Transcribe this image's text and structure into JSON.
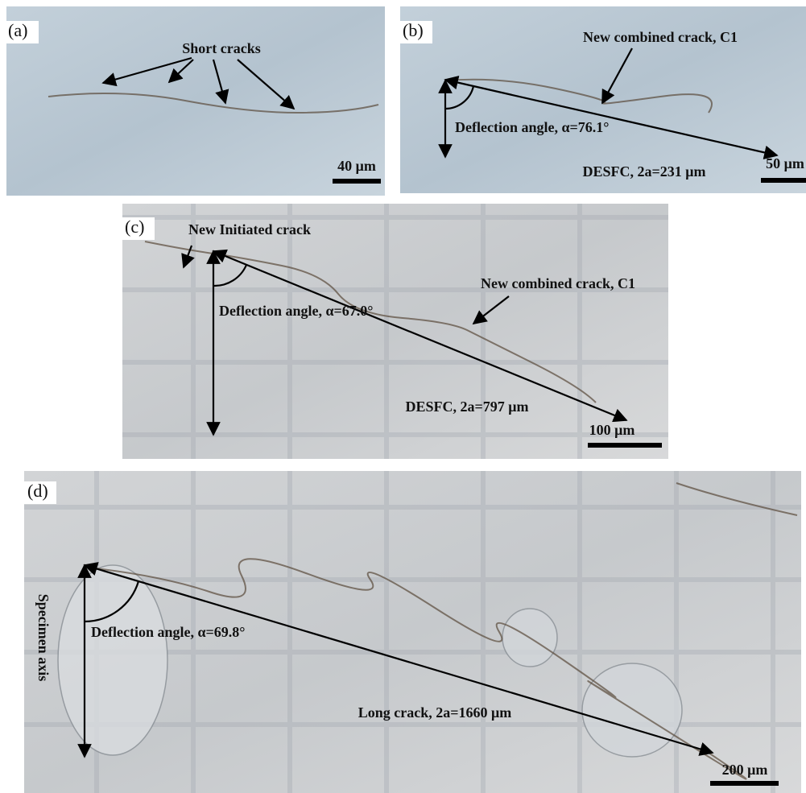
{
  "panels": [
    {
      "label": "(a)",
      "annotations": [
        "Short cracks"
      ],
      "scale_bar": "40 μm"
    },
    {
      "label": "(b)",
      "annotations": [
        "New combined crack, C1",
        "Deflection angle, α=76.1°",
        "DESFC, 2a=231 μm"
      ],
      "scale_bar": "50 μm"
    },
    {
      "label": "(c)",
      "annotations": [
        "New Initiated crack",
        "Deflection angle, α=67.0°",
        "New combined crack, C1",
        "DESFC, 2a=797 μm"
      ],
      "scale_bar": "100 μm"
    },
    {
      "label": "(d)",
      "annotations": [
        "Specimen axis",
        "Deflection angle, α=69.8°",
        "Long crack, 2a=1660 μm"
      ],
      "scale_bar": "200 μm"
    }
  ]
}
